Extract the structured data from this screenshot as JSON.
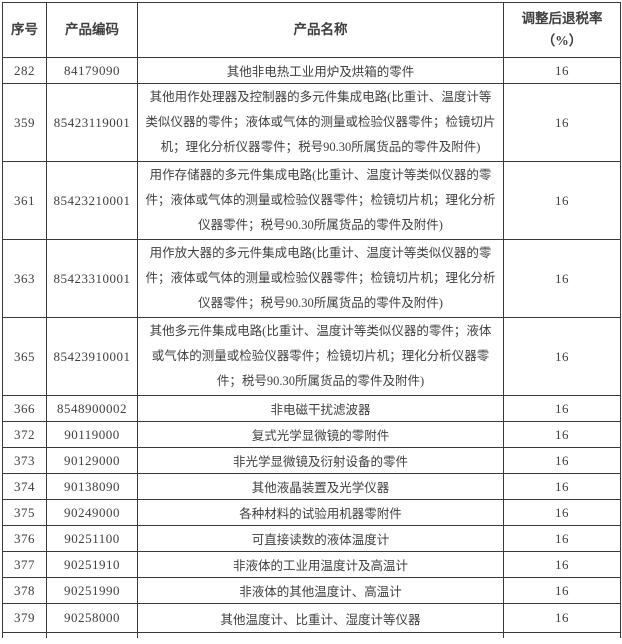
{
  "theme": {
    "border_color": "#3a3a3a",
    "text_color": "#3f3f3f",
    "background": "#ffffff"
  },
  "table": {
    "headers": {
      "no": "序号",
      "code": "产品编码",
      "name": "产品名称",
      "rate_line1": "调整后退税率",
      "rate_line2": "（%）"
    },
    "rows": [
      {
        "no": "282",
        "code": "84179090",
        "name": "其他非电热工业用炉及烘箱的零件",
        "rate": "16"
      },
      {
        "no": "359",
        "code": "85423119001",
        "name": "其他用作处理器及控制器的多元件集成电路(比重计、温度计等类似仪器的零件；液体或气体的测量或检验仪器零件；检镜切片机；理化分析仪器零件；税号90.30所属货品的零件及附件)",
        "rate": "16"
      },
      {
        "no": "361",
        "code": "85423210001",
        "name": "用作存储器的多元件集成电路(比重计、温度计等类似仪器的零件；液体或气体的测量或检验仪器零件；检镜切片机；理化分析仪器零件；税号90.30所属货品的零件及附件)",
        "rate": "16"
      },
      {
        "no": "363",
        "code": "85423310001",
        "name": "用作放大器的多元件集成电路(比重计、温度计等类似仪器的零件；液体或气体的测量或检验仪器零件；检镜切片机；理化分析仪器零件；税号90.30所属货品的零件及附件)",
        "rate": "16"
      },
      {
        "no": "365",
        "code": "85423910001",
        "name": "其他多元件集成电路(比重计、温度计等类似仪器的零件；液体或气体的测量或检验仪器零件；检镜切片机；理化分析仪器零件；税号90.30所属货品的零件及附件)",
        "rate": "16"
      },
      {
        "no": "366",
        "code": "8548900002",
        "name": "非电磁干扰滤波器",
        "rate": "16"
      },
      {
        "no": "372",
        "code": "90119000",
        "name": "复式光学显微镜的零附件",
        "rate": "16"
      },
      {
        "no": "373",
        "code": "90129000",
        "name": "非光学显微镜及衍射设备的零件",
        "rate": "16"
      },
      {
        "no": "374",
        "code": "90138090",
        "name": "其他液晶装置及光学仪器",
        "rate": "16"
      },
      {
        "no": "375",
        "code": "90249000",
        "name": "各种材料的试验用机器零附件",
        "rate": "16"
      },
      {
        "no": "376",
        "code": "90251100",
        "name": "可直接读数的液体温度计",
        "rate": "16"
      },
      {
        "no": "377",
        "code": "90251910",
        "name": "非液体的工业用温度计及高温计",
        "rate": "16"
      },
      {
        "no": "378",
        "code": "90251990",
        "name": "非液体的其他温度计、高温计",
        "rate": "16"
      },
      {
        "no": "379",
        "code": "90258000",
        "name": "其他温度计、比重计、湿度计等仪器",
        "rate": "16"
      }
    ]
  }
}
